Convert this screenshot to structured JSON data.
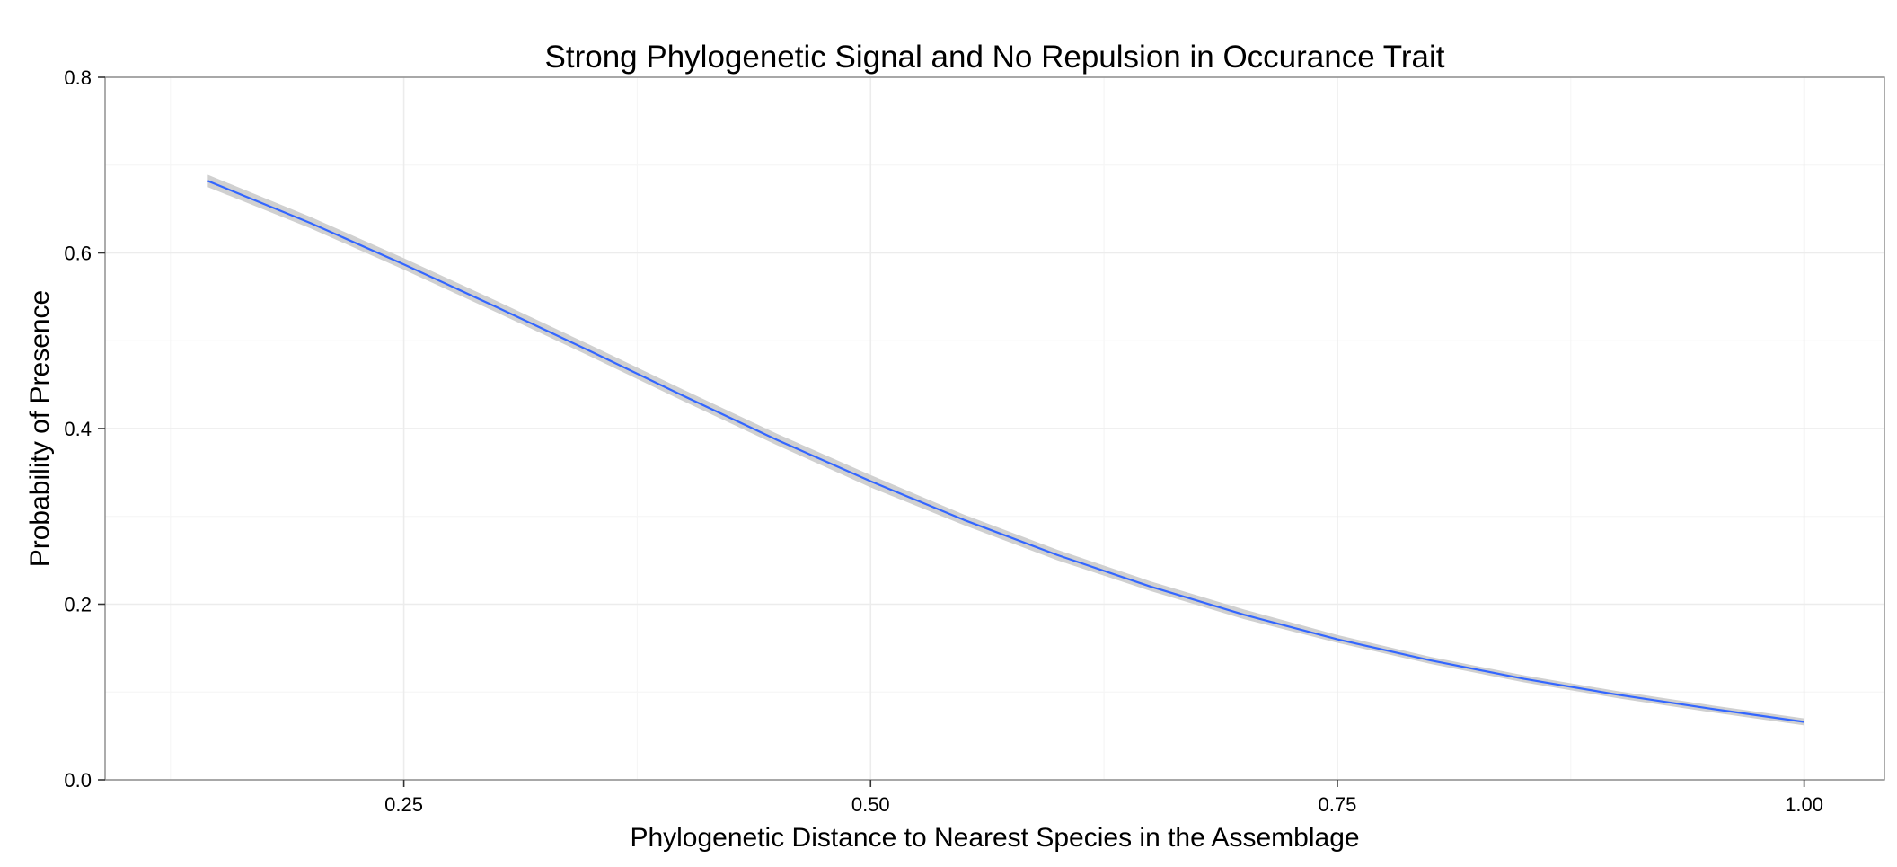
{
  "chart_data": {
    "type": "line",
    "title": "Strong Phylogenetic Signal and No Repulsion in Occurance Trait",
    "xlabel": "Phylogenetic Distance to Nearest Species in the Assemblage",
    "ylabel": "Probability of Presence",
    "xlim": [
      0.09,
      1.043
    ],
    "ylim": [
      0,
      0.8
    ],
    "x_ticks": [
      0.25,
      0.5,
      0.75,
      1.0
    ],
    "x_tick_labels": [
      "0.25",
      "0.50",
      "0.75",
      "1.00"
    ],
    "y_ticks": [
      0.0,
      0.2,
      0.4,
      0.6,
      0.8
    ],
    "y_tick_labels": [
      "0.0",
      "0.2",
      "0.4",
      "0.6",
      "0.8"
    ],
    "grid": true,
    "series": [
      {
        "line_color": "#3366ff",
        "ribbon_color": "#d0d0d0",
        "x": [
          0.145,
          0.2,
          0.25,
          0.3,
          0.35,
          0.4,
          0.45,
          0.5,
          0.55,
          0.6,
          0.65,
          0.7,
          0.75,
          0.8,
          0.85,
          0.9,
          0.95,
          1.0
        ],
        "y": [
          0.682,
          0.634,
          0.587,
          0.538,
          0.488,
          0.437,
          0.387,
          0.34,
          0.296,
          0.256,
          0.22,
          0.188,
          0.16,
          0.136,
          0.115,
          0.097,
          0.081,
          0.066
        ],
        "lower": [
          0.675,
          0.628,
          0.581,
          0.532,
          0.482,
          0.431,
          0.381,
          0.333,
          0.29,
          0.25,
          0.215,
          0.183,
          0.156,
          0.132,
          0.111,
          0.093,
          0.077,
          0.062
        ],
        "upper": [
          0.689,
          0.641,
          0.594,
          0.545,
          0.495,
          0.444,
          0.394,
          0.347,
          0.302,
          0.262,
          0.226,
          0.194,
          0.165,
          0.14,
          0.119,
          0.101,
          0.085,
          0.07
        ]
      }
    ]
  }
}
